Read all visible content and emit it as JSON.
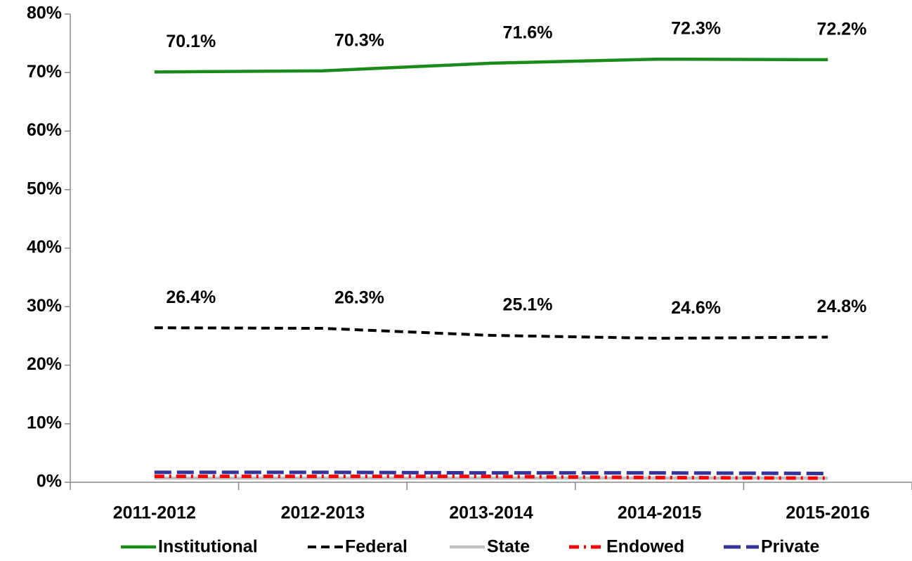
{
  "chart_data": {
    "type": "line",
    "categories": [
      "2011-2012",
      "2012-2013",
      "2013-2014",
      "2014-2015",
      "2015-2016"
    ],
    "series": [
      {
        "name": "Institutional",
        "color": "#1a8a1a",
        "values": [
          70.1,
          70.3,
          71.6,
          72.3,
          72.2
        ],
        "value_labels": [
          "70.1%",
          "70.3%",
          "71.6%",
          "72.3%",
          "72.2%"
        ],
        "dash": "solid"
      },
      {
        "name": "Federal",
        "color": "#000000",
        "values": [
          26.4,
          26.3,
          25.1,
          24.6,
          24.8
        ],
        "value_labels": [
          "26.4%",
          "26.3%",
          "25.1%",
          "24.6%",
          "24.8%"
        ],
        "dash": "dash"
      },
      {
        "name": "State",
        "color": "#bfbfbf",
        "values": [
          0.7,
          0.7,
          0.7,
          0.7,
          0.7
        ],
        "dash": "solid"
      },
      {
        "name": "Endowed",
        "color": "#ff0000",
        "values": [
          1.0,
          1.0,
          1.0,
          0.8,
          0.7
        ],
        "dash": "dashdot"
      },
      {
        "name": "Private",
        "color": "#333399",
        "values": [
          1.7,
          1.7,
          1.6,
          1.6,
          1.5
        ],
        "dash": "longdash"
      }
    ],
    "ylim": [
      0,
      80
    ],
    "yticks": [
      {
        "value": 0,
        "label": "0%"
      },
      {
        "value": 10,
        "label": "10%"
      },
      {
        "value": 20,
        "label": "20%"
      },
      {
        "value": 30,
        "label": "30%"
      },
      {
        "value": 40,
        "label": "40%"
      },
      {
        "value": 50,
        "label": "50%"
      },
      {
        "value": 60,
        "label": "60%"
      },
      {
        "value": 70,
        "label": "70%"
      },
      {
        "value": 80,
        "label": "80%"
      }
    ],
    "legend": "bottom"
  }
}
